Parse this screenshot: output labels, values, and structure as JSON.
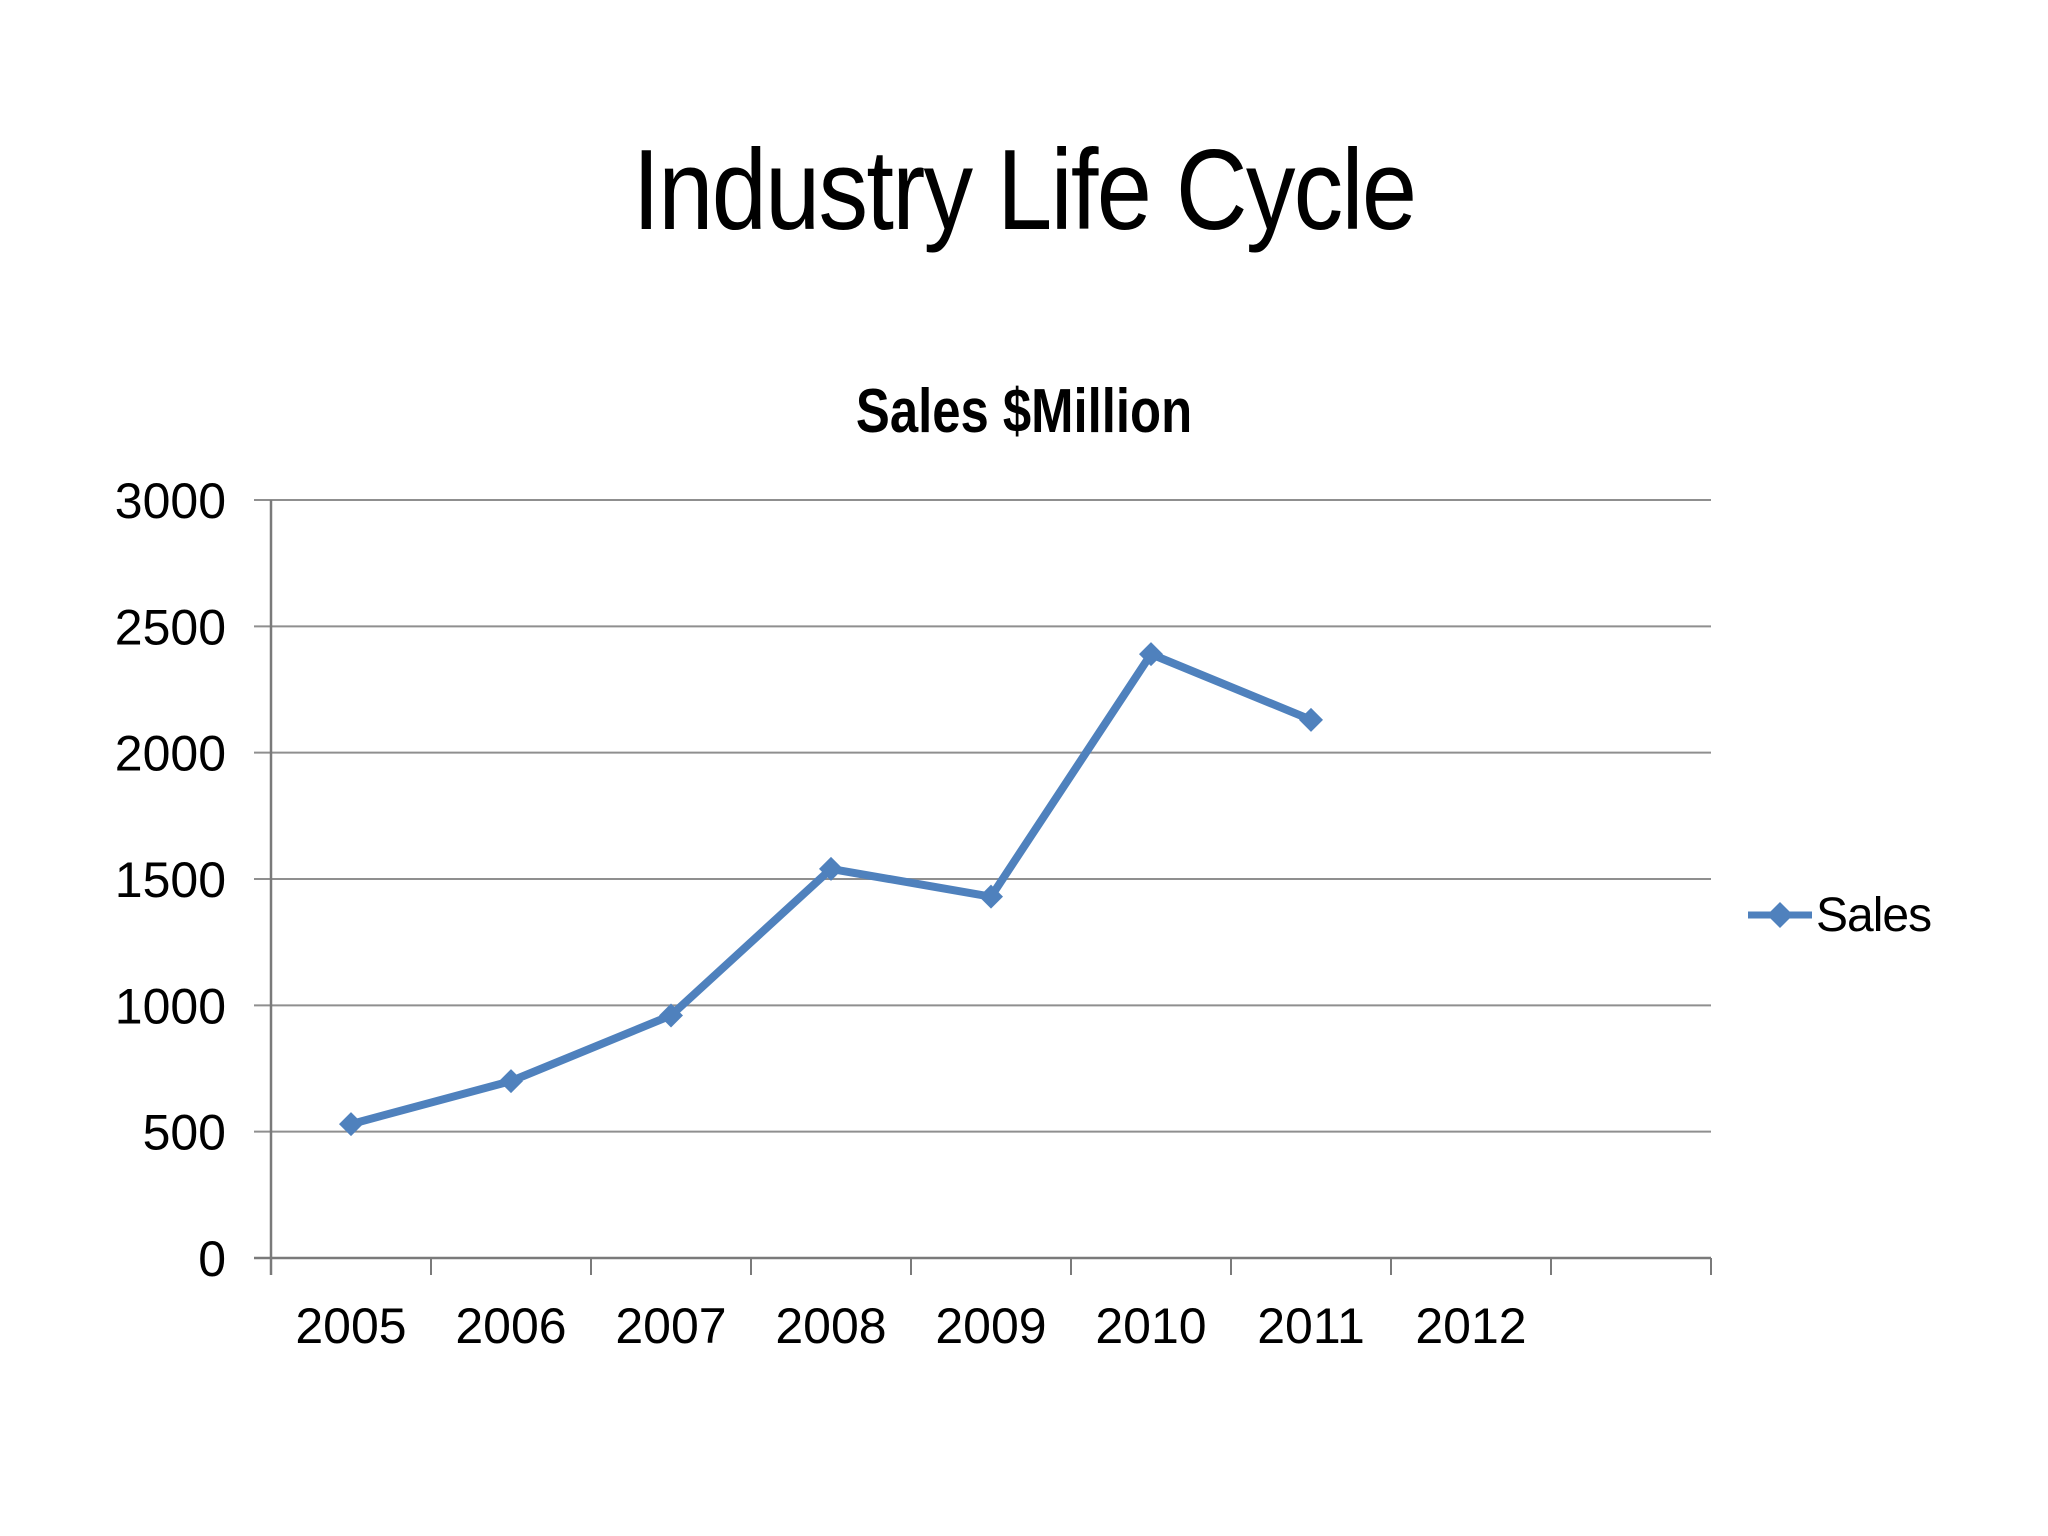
{
  "page": {
    "title": "Industry Life Cycle"
  },
  "chart_data": {
    "type": "line",
    "title": "Sales $Million",
    "categories": [
      "2005",
      "2006",
      "2007",
      "2008",
      "2009",
      "2010",
      "2011",
      "2012"
    ],
    "series": [
      {
        "name": "Sales",
        "values": [
          530,
          700,
          960,
          1540,
          1430,
          2390,
          2130,
          null
        ]
      }
    ],
    "xlabel": "",
    "ylabel": "",
    "ylim": [
      0,
      3000
    ],
    "yticks": [
      0,
      500,
      1000,
      1500,
      2000,
      2500,
      3000
    ],
    "category_slots": 9,
    "grid": true,
    "legend_position": "right",
    "marker": "diamond",
    "colors": {
      "series": "#4F81BD",
      "gridline": "#8F8F8F",
      "axis": "#7A7A7A",
      "text": "#000000"
    }
  }
}
